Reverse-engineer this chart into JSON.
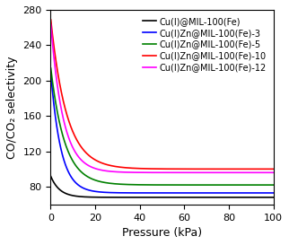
{
  "title": "",
  "xlabel": "Pressure (kPa)",
  "ylabel": "CO/CO₂ selectivity",
  "xlim": [
    0,
    100
  ],
  "ylim": [
    60,
    280
  ],
  "yticks": [
    80,
    120,
    160,
    200,
    240,
    280
  ],
  "xticks": [
    0,
    20,
    40,
    60,
    80,
    100
  ],
  "series": [
    {
      "label": "Cu(I)@MIL-100(Fe)",
      "color": "#000000",
      "y0": 92,
      "y_inf": 68,
      "k": 0.25
    },
    {
      "label": "Cu(I)Zn@MIL-100(Fe)-3",
      "color": "#0000FF",
      "y0": 210,
      "y_inf": 73,
      "k": 0.22
    },
    {
      "label": "Cu(I)Zn@MIL-100(Fe)-5",
      "color": "#008000",
      "y0": 215,
      "y_inf": 82,
      "k": 0.16
    },
    {
      "label": "Cu(I)Zn@MIL-100(Fe)-10",
      "color": "#FF0000",
      "y0": 270,
      "y_inf": 100,
      "k": 0.14
    },
    {
      "label": "Cu(I)Zn@MIL-100(Fe)-12",
      "color": "#FF00FF",
      "y0": 265,
      "y_inf": 96,
      "k": 0.18
    }
  ],
  "background_color": "#ffffff",
  "legend_fontsize": 7,
  "axis_fontsize": 9,
  "tick_fontsize": 8
}
